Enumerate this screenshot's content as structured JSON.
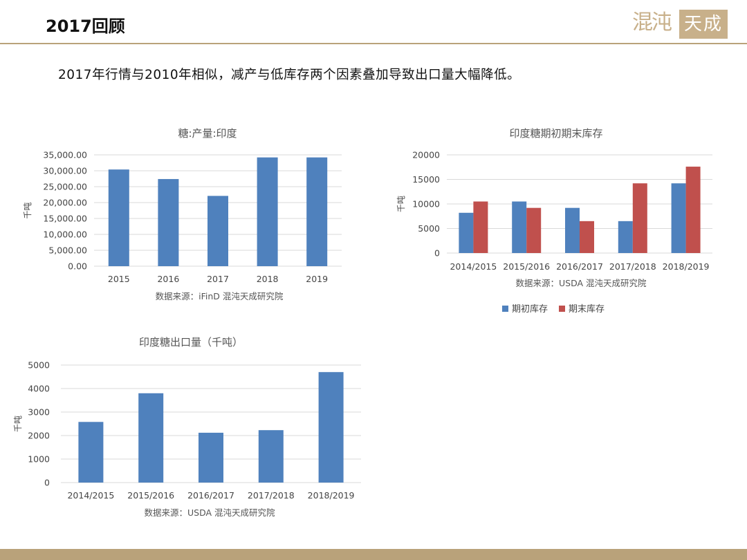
{
  "header": {
    "title": "2017回顾",
    "logo_text": "混沌天成"
  },
  "intro": "2017年行情与2010年相似，减产与低库存两个因素叠加导致出口量大幅降低。",
  "colors": {
    "bar_blue": "#4f81bd",
    "bar_red": "#c0504d",
    "accent": "#b9a27a",
    "grid": "#d9d9d9"
  },
  "chart_data": [
    {
      "type": "bar",
      "title": "糖:产量:印度",
      "ylabel": "千吨",
      "xlabel": "",
      "categories": [
        "2015",
        "2016",
        "2017",
        "2018",
        "2019"
      ],
      "series": [
        {
          "values": [
            30400,
            27400,
            22100,
            34200,
            34200
          ]
        }
      ],
      "ylim": [
        0,
        35000
      ],
      "yticks": [
        "0.00",
        "5,000.00",
        "10,000.00",
        "15,000.00",
        "20,000.00",
        "25,000.00",
        "30,000.00",
        "35,000.00"
      ],
      "source": "数据来源：iFinD 混沌天成研究院",
      "grid": true
    },
    {
      "type": "bar",
      "title": "印度糖期初期末库存",
      "ylabel": "千吨",
      "xlabel": "",
      "categories": [
        "2014/2015",
        "2015/2016",
        "2016/2017",
        "2017/2018",
        "2018/2019"
      ],
      "series": [
        {
          "name": "期初库存",
          "values": [
            8200,
            10500,
            9200,
            6500,
            14200
          ]
        },
        {
          "name": "期末库存",
          "values": [
            10500,
            9200,
            6500,
            14200,
            17600
          ]
        }
      ],
      "ylim": [
        0,
        20000
      ],
      "yticks": [
        "0",
        "5000",
        "10000",
        "15000",
        "20000"
      ],
      "source": "数据来源：USDA 混沌天成研究院",
      "legend": "bottom",
      "grid": true
    },
    {
      "type": "bar",
      "title": "印度糖出口量（千吨）",
      "ylabel": "千吨",
      "xlabel": "",
      "categories": [
        "2014/2015",
        "2015/2016",
        "2016/2017",
        "2017/2018",
        "2018/2019"
      ],
      "series": [
        {
          "values": [
            2580,
            3800,
            2120,
            2230,
            4700
          ]
        }
      ],
      "ylim": [
        0,
        5000
      ],
      "yticks": [
        "0",
        "1000",
        "2000",
        "3000",
        "4000",
        "5000"
      ],
      "source": "数据来源：USDA 混沌天成研究院",
      "grid": true
    }
  ]
}
